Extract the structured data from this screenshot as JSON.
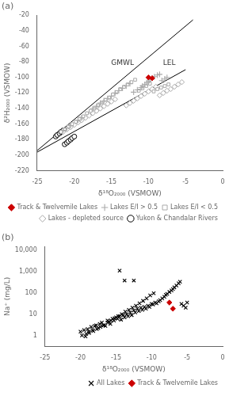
{
  "chart_data": [
    {
      "type": "scatter",
      "title": "(a)",
      "xlabel": "δ¹⁸O₂₀₀₀ (VSMOW)",
      "ylabel": "δ²H₂₀₀₀ (VSMOW)",
      "xlim": [
        -25,
        0
      ],
      "ylim": [
        -220,
        -20
      ],
      "xticks": [
        -25,
        -20,
        -15,
        -10,
        -5,
        0
      ],
      "yticks": [
        -220,
        -200,
        -180,
        -160,
        -140,
        -120,
        -100,
        -80,
        -60,
        -40,
        -20
      ],
      "grid": false,
      "legend": "lower right",
      "series": [
        {
          "name": "Track & Twelvemile Lakes",
          "color": "#cc0000",
          "marker": "filled_diamond",
          "x": [
            -10.0,
            -9.5
          ],
          "values": [
            -100,
            -101
          ]
        },
        {
          "name": "Lakes E/I > 0.5",
          "color": "#aaaaaa",
          "marker": "plus",
          "x": [
            -21.5,
            -21.0,
            -20.5,
            -19.5,
            -19.0,
            -17.5,
            -17.0,
            -16.5,
            -16.0,
            -15.5,
            -15.0,
            -14.5,
            -14.0,
            -13.5,
            -13.0,
            -12.5,
            -12.0,
            -11.5,
            -11.0,
            -10.8,
            -10.5,
            -10.2,
            -10.0,
            -9.8,
            -9.5,
            -9.2,
            -8.8,
            -8.5,
            -8.2,
            -7.8,
            -7.5
          ],
          "values": [
            -168,
            -165,
            -162,
            -155,
            -152,
            -140,
            -137,
            -133,
            -130,
            -127,
            -124,
            -120,
            -117,
            -114,
            -111,
            -108,
            -119,
            -116,
            -113,
            -111,
            -109,
            -107,
            -105,
            -103,
            -101,
            -99,
            -97,
            -96,
            -104,
            -102,
            -100
          ]
        },
        {
          "name": "Lakes E/I < 0.5",
          "color": "#aaaaaa",
          "marker": "open_square",
          "x": [
            -21.8,
            -21.3,
            -20.8,
            -20.3,
            -19.8,
            -19.3,
            -18.8,
            -18.3,
            -17.8,
            -17.3,
            -16.8,
            -16.3,
            -15.8,
            -15.3,
            -14.8,
            -14.3,
            -13.8,
            -13.3,
            -12.8,
            -12.3,
            -11.8,
            -11.3,
            -10.8,
            -10.3,
            -9.8,
            -9.3,
            -8.8,
            -8.3,
            -7.8,
            -7.3
          ],
          "values": [
            -170,
            -167,
            -163,
            -160,
            -157,
            -153,
            -150,
            -146,
            -143,
            -140,
            -136,
            -133,
            -129,
            -126,
            -122,
            -119,
            -115,
            -112,
            -109,
            -106,
            -103,
            -117,
            -114,
            -111,
            -108,
            -118,
            -115,
            -113,
            -111,
            -109
          ]
        },
        {
          "name": "Lakes - depleted source",
          "color": "#aaaaaa",
          "marker": "open_diamond",
          "x": [
            -21.5,
            -21.0,
            -20.5,
            -20.0,
            -19.5,
            -19.0,
            -18.5,
            -18.0,
            -17.5,
            -17.0,
            -16.5,
            -16.0,
            -15.5,
            -15.0,
            -14.5,
            -13.0,
            -12.5,
            -12.0,
            -11.5,
            -11.0,
            -10.5,
            -10.0,
            -9.5,
            -9.0,
            -8.5,
            -8.0,
            -7.5,
            -7.0,
            -6.5,
            -6.0,
            -5.5
          ],
          "values": [
            -170,
            -167,
            -164,
            -161,
            -158,
            -155,
            -152,
            -149,
            -146,
            -143,
            -140,
            -137,
            -134,
            -131,
            -128,
            -136,
            -133,
            -130,
            -127,
            -124,
            -121,
            -118,
            -115,
            -112,
            -123,
            -120,
            -117,
            -115,
            -112,
            -109,
            -106
          ]
        },
        {
          "name": "Yukon & Chandalar Rivers",
          "color": "#000000",
          "marker": "open_circle",
          "x": [
            -22.5,
            -22.3,
            -22.0,
            -21.8,
            -21.5,
            -21.3,
            -21.0,
            -20.8,
            -20.5,
            -20.3,
            -20.0
          ],
          "values": [
            -176,
            -174,
            -172,
            -170,
            -168,
            -186,
            -184,
            -182,
            -180,
            -178,
            -176
          ]
        },
        {
          "type": "line",
          "color": "#000000",
          "line_style": "solid",
          "x": [
            -25,
            -4
          ],
          "values": [
            -194,
            -26
          ]
        },
        {
          "type": "line",
          "color": "#000000",
          "line_style": "solid",
          "x": [
            -25,
            -5
          ],
          "values": [
            -196,
            -90
          ]
        }
      ],
      "annotations": [
        {
          "text": "GMWL",
          "x": -13.5,
          "y": -86
        },
        {
          "text": "LEL",
          "x": -7.2,
          "y": -86
        }
      ]
    },
    {
      "type": "scatter",
      "title": "(b)",
      "xlabel": "δ¹⁸O₂₀₀₀ (VSMOW)",
      "ylabel": "Na⁺ (mg/L)",
      "log": "y",
      "xlim": [
        -25,
        0
      ],
      "ylim": [
        0.3,
        15000
      ],
      "xticks": [
        -25,
        -20,
        -15,
        -10,
        -5,
        0
      ],
      "yticks": [
        1,
        10,
        100,
        {
          "value": 1000,
          "label": "1,000"
        },
        {
          "value": 10000,
          "label": "10,000"
        }
      ],
      "grid": false,
      "legend": "lower right",
      "series": [
        {
          "name": "All Lakes",
          "color": "#000000",
          "marker": "x",
          "x": [
            -20.0,
            -19.5,
            -19.2,
            -19.0,
            -18.8,
            -18.5,
            -18.3,
            -18.0,
            -17.8,
            -17.5,
            -17.3,
            -17.0,
            -16.8,
            -16.5,
            -16.2,
            -16.0,
            -15.8,
            -15.5,
            -15.3,
            -15.0,
            -14.8,
            -14.5,
            -14.3,
            -14.0,
            -13.8,
            -13.5,
            -13.3,
            -13.0,
            -12.8,
            -12.5,
            -12.3,
            -12.0,
            -11.8,
            -11.5,
            -11.3,
            -11.0,
            -10.8,
            -10.5,
            -10.3,
            -10.0,
            -9.8,
            -9.5,
            -9.3,
            -9.0,
            -8.8,
            -8.5,
            -8.2,
            -8.0,
            -7.8,
            -7.5,
            -7.2,
            -7.0,
            -6.8,
            -6.5,
            -6.2,
            -6.0,
            -5.8,
            -5.5,
            -5.2,
            -5.0,
            -19.8,
            -19.3,
            -18.8,
            -18.2,
            -17.7,
            -17.2,
            -16.7,
            -16.2,
            -15.7,
            -15.2,
            -14.7,
            -14.2,
            -13.7,
            -13.2,
            -12.7,
            -12.2,
            -11.7,
            -11.2,
            -10.7,
            -10.2,
            -9.7,
            -14.5,
            -13.8,
            -12.5
          ],
          "values": [
            1.5,
            1.8,
            1.2,
            2.0,
            1.5,
            2.5,
            1.8,
            2.8,
            3.0,
            2.2,
            3.5,
            4.0,
            3.0,
            2.8,
            5.0,
            4.5,
            3.5,
            6.0,
            5.0,
            7.0,
            6.0,
            8.0,
            5.5,
            9.0,
            7.0,
            10.0,
            8.0,
            12.0,
            9.0,
            15.0,
            12.0,
            18.0,
            14.0,
            20.0,
            16.0,
            22.0,
            18.0,
            25.0,
            22.0,
            30.0,
            28.0,
            35.0,
            32.0,
            40.0,
            45.0,
            55.0,
            65.0,
            80.0,
            90.0,
            110.0,
            130.0,
            150.0,
            180.0,
            220.0,
            280.0,
            330.0,
            30.0,
            25.0,
            20.0,
            35.0,
            1.0,
            0.9,
            1.3,
            1.6,
            2.0,
            2.5,
            3.0,
            4.0,
            5.0,
            6.5,
            8.0,
            10.0,
            13.0,
            16.0,
            20.0,
            25.0,
            32.0,
            42.0,
            55.0,
            75.0,
            95.0,
            1100.0,
            380.0,
            380.0
          ]
        },
        {
          "name": "Track & Twelvemile Lakes",
          "color": "#cc0000",
          "marker": "filled_diamond",
          "x": [
            -7.5,
            -7.0
          ],
          "values": [
            35,
            18
          ]
        }
      ]
    }
  ]
}
